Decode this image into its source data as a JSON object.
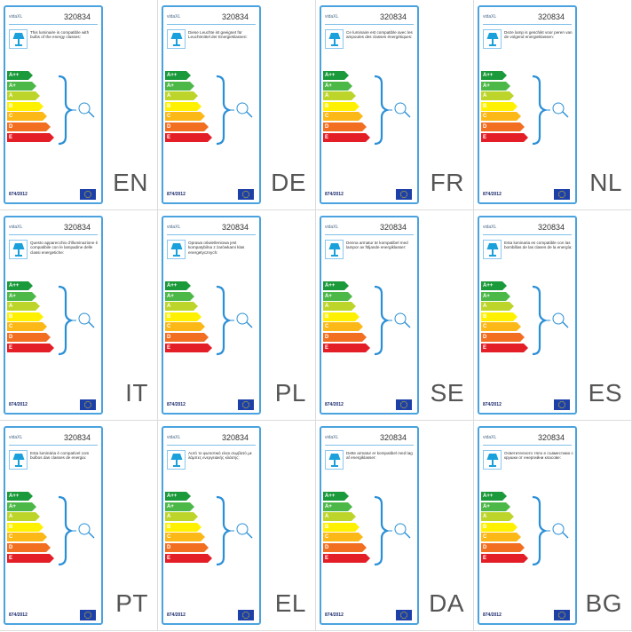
{
  "labels": [
    {
      "lang": "EN",
      "brand": "vidaXL",
      "model": "320834",
      "text": "This luminaire is compatible with bulbs of the energy classes:",
      "regulation": "874/2012"
    },
    {
      "lang": "DE",
      "brand": "vidaXL",
      "model": "320834",
      "text": "Diese Leuchte ist geeignet für Leuchtmittel der Energieklassen:",
      "regulation": "874/2012"
    },
    {
      "lang": "FR",
      "brand": "vidaXL",
      "model": "320834",
      "text": "Ce luminaire est compatible avec les ampoules des classes énergétiques:",
      "regulation": "874/2012"
    },
    {
      "lang": "NL",
      "brand": "vidaXL",
      "model": "320834",
      "text": "Deze lamp is geschikt voor peren van de volgend energieklassen:",
      "regulation": "874/2012"
    },
    {
      "lang": "IT",
      "brand": "vidaXL",
      "model": "320834",
      "text": "Questo apparecchio d'illuminazione è compatibile con le lampadine delle classi energetiche:",
      "regulation": "874/2012"
    },
    {
      "lang": "PL",
      "brand": "vidaXL",
      "model": "320834",
      "text": "Oprawa oświetleniowa jest kompatybilna z żarówkami klas energetycznych:",
      "regulation": "874/2012"
    },
    {
      "lang": "SE",
      "brand": "vidaXL",
      "model": "320834",
      "text": "Denna armatur är kompatibel med lampor av följande energiklasser:",
      "regulation": "874/2012"
    },
    {
      "lang": "ES",
      "brand": "vidaXL",
      "model": "320834",
      "text": "Esta luminaria es compatible con las bombillas de las clases de la energía:",
      "regulation": "874/2012"
    },
    {
      "lang": "PT",
      "brand": "vidaXL",
      "model": "320834",
      "text": "Esta luminária é compatível com bulbos das classes de energia:",
      "regulation": "874/2012"
    },
    {
      "lang": "EL",
      "brand": "vidaXL",
      "model": "320834",
      "text": "Αυτό το φωτιστικό είναι συμβατό με λάμπες ενεργειακής κλάσης:",
      "regulation": "874/2012"
    },
    {
      "lang": "DA",
      "brand": "vidaXL",
      "model": "320834",
      "text": "Dette armatur er kompatibel med løg af energiklasser:",
      "regulation": "874/2012"
    },
    {
      "lang": "BG",
      "brand": "vidaXL",
      "model": "320834",
      "text": "Осветителното тяло е съвместимо с крушки от енергийни класове:",
      "regulation": "874/2012"
    }
  ],
  "energy_scale": [
    {
      "cls": "A++",
      "color": "#1a9a3a"
    },
    {
      "cls": "A+",
      "color": "#4cb848"
    },
    {
      "cls": "A",
      "color": "#bdd52a"
    },
    {
      "cls": "B",
      "color": "#fff100"
    },
    {
      "cls": "C",
      "color": "#fbb817"
    },
    {
      "cls": "D",
      "color": "#f26f21"
    },
    {
      "cls": "E",
      "color": "#e41e26"
    }
  ],
  "colors": {
    "frame": "#4aa3df",
    "lamp_icon": "#1aa0db",
    "brace": "#2a8fd6",
    "eu_flag": "#1c3fa8",
    "eu_stars": "#ffdd00"
  },
  "icons": {
    "lamp": "table-lamp-icon",
    "bulb": "bulb-icon",
    "flag": "eu-flag-icon"
  }
}
